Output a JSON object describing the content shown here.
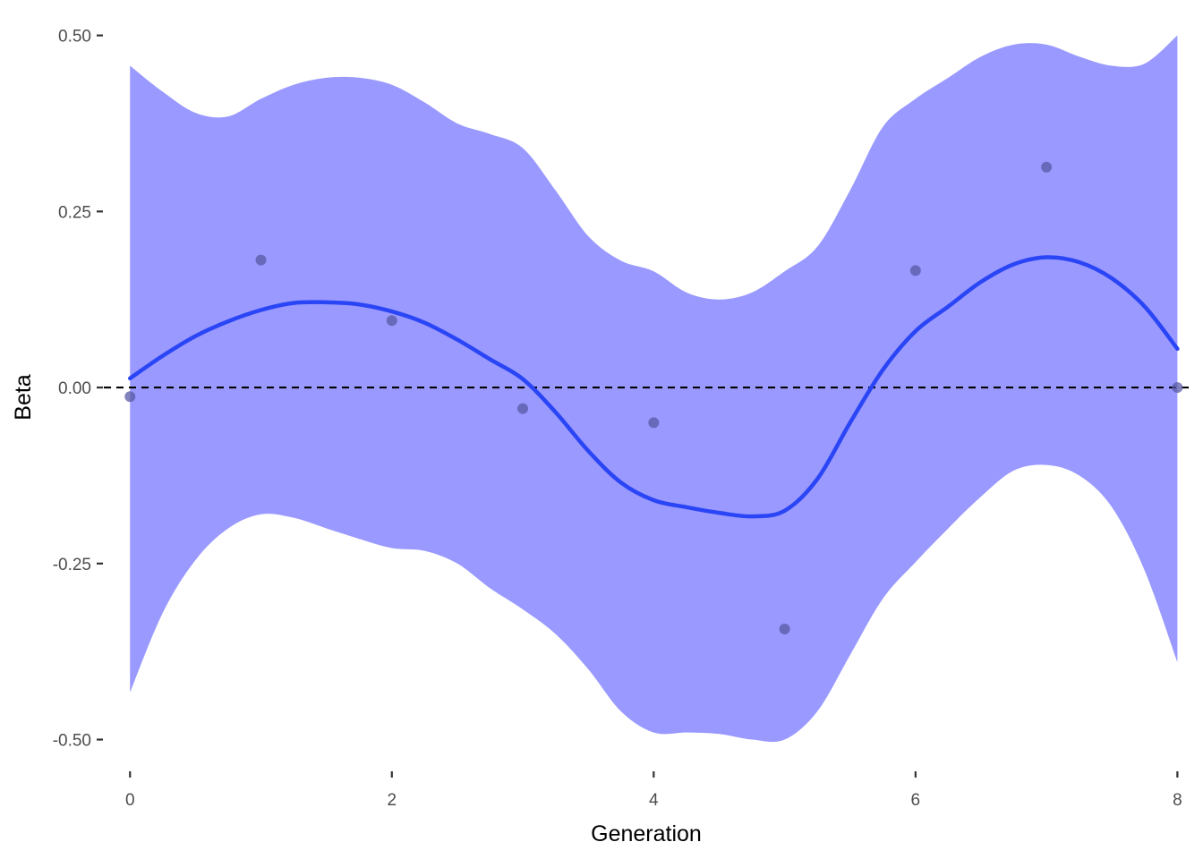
{
  "chart_data": {
    "type": "line",
    "title": "",
    "xlabel": "Generation",
    "ylabel": "Beta",
    "xlim": [
      -0.2,
      8.1
    ],
    "ylim": [
      -0.54,
      0.53
    ],
    "x_ticks": [
      0,
      2,
      4,
      6,
      8
    ],
    "x_tick_labels": [
      "0",
      "2",
      "4",
      "6",
      "8"
    ],
    "y_ticks": [
      -0.5,
      -0.25,
      0,
      0.25,
      0.5
    ],
    "y_tick_labels": [
      "-0.50",
      "-0.25",
      "0.00",
      "0.25",
      "0.50"
    ],
    "grid": false,
    "reference_line": {
      "y": 0,
      "style": "dashed",
      "color": "#000000"
    },
    "points": {
      "color": "#5a5aa6",
      "x": [
        0,
        1,
        2,
        3,
        4,
        5,
        6,
        7,
        8
      ],
      "y": [
        -0.013,
        0.181,
        0.095,
        -0.03,
        -0.05,
        -0.343,
        0.166,
        0.313,
        0.0
      ]
    },
    "smooth": {
      "color": "#2a45f5",
      "x": [
        0,
        0.25,
        0.5,
        0.75,
        1.0,
        1.25,
        1.5,
        1.75,
        2.0,
        2.25,
        2.5,
        2.75,
        3.0,
        3.25,
        3.5,
        3.75,
        4.0,
        4.25,
        4.5,
        4.75,
        5.0,
        5.25,
        5.5,
        5.75,
        6.0,
        6.25,
        6.5,
        6.75,
        7.0,
        7.25,
        7.5,
        7.75,
        8.0
      ],
      "y": [
        0.013,
        0.045,
        0.073,
        0.094,
        0.11,
        0.12,
        0.121,
        0.118,
        0.108,
        0.092,
        0.068,
        0.04,
        0.012,
        -0.035,
        -0.09,
        -0.135,
        -0.16,
        -0.17,
        -0.178,
        -0.183,
        -0.175,
        -0.13,
        -0.05,
        0.025,
        0.08,
        0.115,
        0.15,
        0.175,
        0.185,
        0.178,
        0.155,
        0.115,
        0.055
      ],
      "upper": [
        0.457,
        0.42,
        0.39,
        0.385,
        0.41,
        0.43,
        0.44,
        0.44,
        0.43,
        0.405,
        0.375,
        0.36,
        0.34,
        0.28,
        0.215,
        0.18,
        0.165,
        0.135,
        0.125,
        0.135,
        0.165,
        0.2,
        0.28,
        0.37,
        0.41,
        0.44,
        0.47,
        0.487,
        0.487,
        0.47,
        0.457,
        0.46,
        0.5
      ],
      "lower": [
        -0.433,
        -0.32,
        -0.245,
        -0.2,
        -0.18,
        -0.185,
        -0.2,
        -0.215,
        -0.228,
        -0.232,
        -0.25,
        -0.285,
        -0.315,
        -0.35,
        -0.4,
        -0.46,
        -0.49,
        -0.49,
        -0.492,
        -0.5,
        -0.5,
        -0.46,
        -0.38,
        -0.3,
        -0.248,
        -0.2,
        -0.155,
        -0.118,
        -0.11,
        -0.125,
        -0.17,
        -0.26,
        -0.39
      ]
    },
    "band_color": "#9999ff"
  }
}
